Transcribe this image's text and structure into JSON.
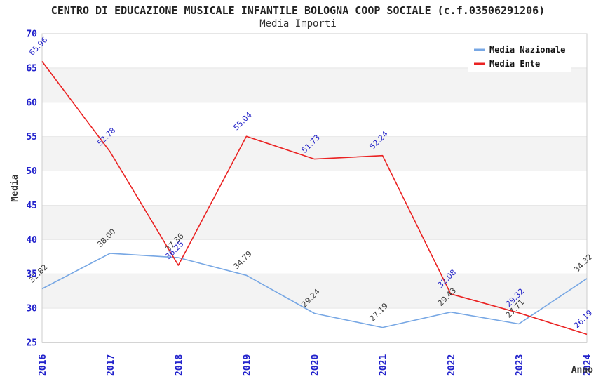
{
  "chart_data": {
    "type": "line",
    "title": "CENTRO DI EDUCAZIONE MUSICALE INFANTILE BOLOGNA COOP SOCIALE (c.f.03506291206)",
    "subtitle": "Media Importi",
    "xlabel": "Anno",
    "ylabel": "Media",
    "categories": [
      "2016",
      "2017",
      "2018",
      "2019",
      "2020",
      "2021",
      "2022",
      "2023",
      "2024"
    ],
    "ylim": [
      25,
      70
    ],
    "ytick_step": 5,
    "grid": "horizontal-bands",
    "legend_position": "top-right",
    "series": [
      {
        "name": "Media Nazionale",
        "color": "#77a7e4",
        "label_color": "#3a3a3a",
        "values": [
          32.82,
          38.0,
          37.36,
          34.79,
          29.24,
          27.19,
          29.43,
          27.71,
          34.32
        ]
      },
      {
        "name": "Media Ente",
        "color": "#ea2222",
        "label_color": "#2424c8",
        "values": [
          65.96,
          52.78,
          36.25,
          55.04,
          51.73,
          52.24,
          32.08,
          29.32,
          26.19
        ]
      }
    ],
    "colors": {
      "axis_ticks": "#2222cc",
      "band_fill": "#f3f3f3",
      "grid_line": "#e7e7e7",
      "plot_border": "#cccccc",
      "axis_line": "#aaaaaa",
      "legend_box": "#ffffff",
      "legend_text": "#111111",
      "axis_title": "#333333"
    }
  }
}
